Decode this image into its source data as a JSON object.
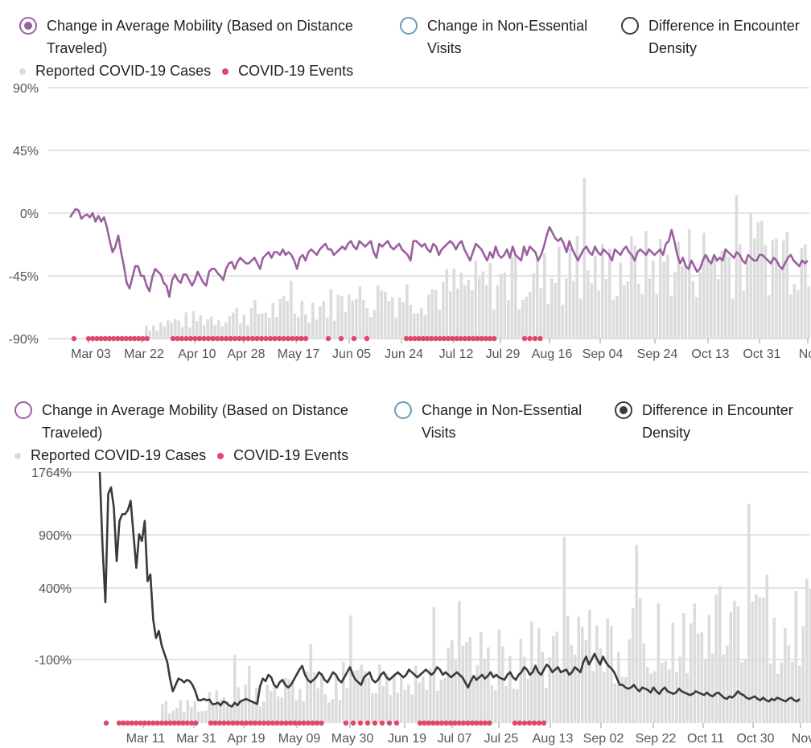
{
  "legend": {
    "radio_options": [
      "Change in Average Mobility (Based on Distance Traveled)",
      "Change in Non-Essential Visits",
      "Difference in Encounter Density"
    ],
    "radio_lines": [
      [
        "Change in Average Mobility (Based on Distance",
        "Traveled)"
      ],
      [
        "Change in Non-Essential",
        "Visits"
      ],
      [
        "Difference in Encounter",
        "Density"
      ]
    ],
    "cases_label": "Reported COVID-19 Cases",
    "events_label": "COVID-19 Events"
  },
  "colors": {
    "mobility": "#9b5fa0",
    "visits": "#6a9cb5",
    "density": "#3a3a3a",
    "cases": "#dcdcdc",
    "events": "#e0476c",
    "grid": "#c8c8c8"
  },
  "chart_data": [
    {
      "type": "line",
      "selected_metric": "Change in Average Mobility (Based on Distance Traveled)",
      "y_ticks": [
        "90%",
        "45%",
        "0%",
        "-45%",
        "-90%"
      ],
      "ylim": [
        -90,
        90
      ],
      "x_ticks": [
        "Mar 03",
        "Mar 22",
        "Apr 10",
        "Apr 28",
        "May 17",
        "Jun 05",
        "Jun 24",
        "Jul 12",
        "Jul 29",
        "Aug 16",
        "Sep 04",
        "Sep 24",
        "Oct 13",
        "Oct 31",
        "Nov"
      ],
      "series": [
        {
          "name": "Change in Average Mobility (Based on Distance Traveled)",
          "values": [
            -3,
            0,
            3,
            2,
            -4,
            -2,
            -1,
            -3,
            0,
            -6,
            -2,
            -6,
            -3,
            -10,
            -20,
            -28,
            -24,
            -16,
            -28,
            -38,
            -50,
            -54,
            -46,
            -38,
            -38,
            -45,
            -45,
            -52,
            -56,
            -46,
            -40,
            -42,
            -44,
            -50,
            -52,
            -60,
            -48,
            -44,
            -48,
            -50,
            -44,
            -44,
            -48,
            -52,
            -48,
            -42,
            -46,
            -50,
            -52,
            -42,
            -40,
            -40,
            -43,
            -45,
            -48,
            -40,
            -36,
            -35,
            -40,
            -35,
            -32,
            -34,
            -36,
            -36,
            -34,
            -32,
            -36,
            -40,
            -32,
            -30,
            -28,
            -32,
            -28,
            -28,
            -30,
            -26,
            -30,
            -28,
            -30,
            -34,
            -40,
            -32,
            -30,
            -34,
            -28,
            -26,
            -28,
            -30,
            -26,
            -24,
            -22,
            -26,
            -26,
            -30,
            -28,
            -26,
            -24,
            -26,
            -22,
            -20,
            -24,
            -26,
            -20,
            -22,
            -24,
            -22,
            -20,
            -28,
            -32,
            -22,
            -24,
            -22,
            -20,
            -24,
            -26,
            -24,
            -22,
            -26,
            -28,
            -30,
            -34,
            -20,
            -20,
            -22,
            -24,
            -22,
            -26,
            -28,
            -22,
            -24,
            -30,
            -26,
            -24,
            -22,
            -20,
            -22,
            -26,
            -22,
            -20,
            -26,
            -30,
            -34,
            -28,
            -22,
            -24,
            -26,
            -30,
            -34,
            -28,
            -32,
            -24,
            -30,
            -32,
            -30,
            -26,
            -32,
            -24,
            -30,
            -32,
            -34,
            -24,
            -30,
            -24,
            -26,
            -28,
            -34,
            -30,
            -24,
            -16,
            -10,
            -14,
            -18,
            -20,
            -18,
            -22,
            -28,
            -20,
            -26,
            -30,
            -34,
            -30,
            -26,
            -24,
            -28,
            -30,
            -24,
            -28,
            -30,
            -26,
            -28,
            -30,
            -34,
            -26,
            -28,
            -30,
            -26,
            -24,
            -28,
            -30,
            -34,
            -28,
            -26,
            -28,
            -30,
            -26,
            -28,
            -30,
            -28,
            -26,
            -30,
            -22,
            -20,
            -12,
            -20,
            -30,
            -36,
            -32,
            -38,
            -40,
            -34,
            -38,
            -42,
            -40,
            -34,
            -30,
            -34,
            -36,
            -30,
            -34,
            -32,
            -34,
            -26,
            -28,
            -30,
            -32,
            -28,
            -30,
            -34,
            -36,
            -30,
            -32,
            -34,
            -34,
            -30,
            -30,
            -32,
            -34,
            -36,
            -32,
            -34,
            -38,
            -40,
            -36,
            -32,
            -30,
            -34,
            -36,
            -38,
            -34,
            -36,
            -34
          ]
        }
      ]
    },
    {
      "type": "line",
      "selected_metric": "Difference in Encounter Density",
      "y_ticks": [
        "1764%",
        "900%",
        "400%",
        "-100%"
      ],
      "ylim": [
        -100,
        1764
      ],
      "x_ticks": [
        "Mar 11",
        "Mar 31",
        "Apr 19",
        "May 09",
        "May 30",
        "Jun 19",
        "Jul 07",
        "Jul 25",
        "Aug 13",
        "Sep 02",
        "Sep 22",
        "Oct 11",
        "Oct 30",
        "Nov"
      ],
      "series": [
        {
          "name": "Difference in Encounter Density",
          "values": [
            1764,
            1200,
            800,
            1600,
            1650,
            1500,
            1100,
            1400,
            1450,
            1450,
            1480,
            1550,
            1300,
            1050,
            1300,
            1250,
            1400,
            950,
            1000,
            680,
            550,
            600,
            500,
            440,
            380,
            250,
            150,
            200,
            250,
            240,
            220,
            240,
            230,
            200,
            150,
            80,
            80,
            90,
            80,
            85,
            50,
            50,
            60,
            40,
            70,
            60,
            40,
            30,
            60,
            40,
            70,
            80,
            90,
            80,
            70,
            60,
            50,
            190,
            250,
            230,
            280,
            260,
            200,
            180,
            220,
            240,
            200,
            180,
            200,
            240,
            280,
            320,
            350,
            280,
            240,
            220,
            240,
            260,
            300,
            280,
            240,
            220,
            260,
            300,
            280,
            240,
            220,
            260,
            300,
            340,
            280,
            240,
            220,
            200,
            260,
            280,
            300,
            240,
            220,
            240,
            280,
            300,
            260,
            240,
            260,
            280,
            300,
            280,
            260,
            280,
            320,
            300,
            280,
            260,
            280,
            300,
            320,
            300,
            280,
            300,
            340,
            320,
            280,
            300,
            280,
            260,
            280,
            300,
            280,
            260,
            220,
            180,
            230,
            270,
            240,
            260,
            280,
            250,
            270,
            300,
            260,
            280,
            260,
            250,
            240,
            280,
            300,
            260,
            240,
            280,
            300,
            340,
            320,
            280,
            300,
            350,
            300,
            280,
            320,
            360,
            340,
            300,
            320,
            340,
            300,
            310,
            320,
            280,
            300,
            340,
            320,
            300,
            380,
            420,
            360,
            400,
            440,
            400,
            360,
            420,
            380,
            350,
            330,
            300,
            250,
            200,
            200,
            180,
            170,
            180,
            200,
            170,
            150,
            180,
            170,
            160,
            140,
            180,
            150,
            130,
            160,
            180,
            150,
            140,
            130,
            140,
            170,
            150,
            140,
            130,
            120,
            130,
            150,
            140,
            130,
            120,
            140,
            120,
            110,
            130,
            140,
            120,
            100,
            90,
            110,
            100,
            120,
            150,
            130,
            120,
            100,
            90,
            100,
            110,
            90,
            80,
            100,
            80,
            70,
            90,
            80,
            100,
            90,
            80,
            70,
            90,
            100,
            80,
            70,
            90
          ]
        }
      ]
    }
  ]
}
